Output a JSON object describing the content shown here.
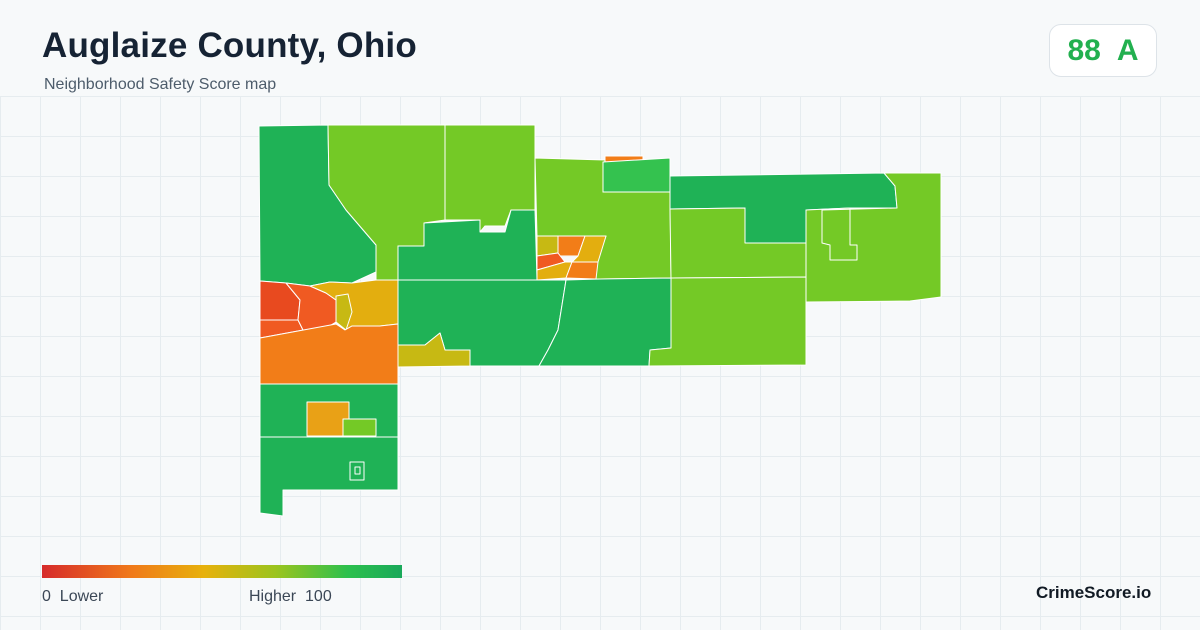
{
  "header": {
    "title": "Auglaize County, Ohio",
    "subtitle": "Neighborhood Safety Score map"
  },
  "score": {
    "value": "88",
    "grade": "A",
    "color": "#22b04f"
  },
  "legend": {
    "min_value": "0",
    "min_label": "Lower",
    "max_label": "Higher",
    "max_value": "100",
    "colors": [
      "#d62b2b",
      "#f07a1a",
      "#e7b10c",
      "#9bc41e",
      "#2cc04d",
      "#1aa95a"
    ]
  },
  "brand": "CrimeScore.io",
  "palette": {
    "dark_green": "#1fb256",
    "light_green": "#74c926",
    "bright_green": "#34c24f",
    "yellow": "#e3ae0f",
    "olive": "#c7b913",
    "orange": "#f27d18",
    "red_orange": "#f05a22",
    "red": "#e84a1f"
  }
}
